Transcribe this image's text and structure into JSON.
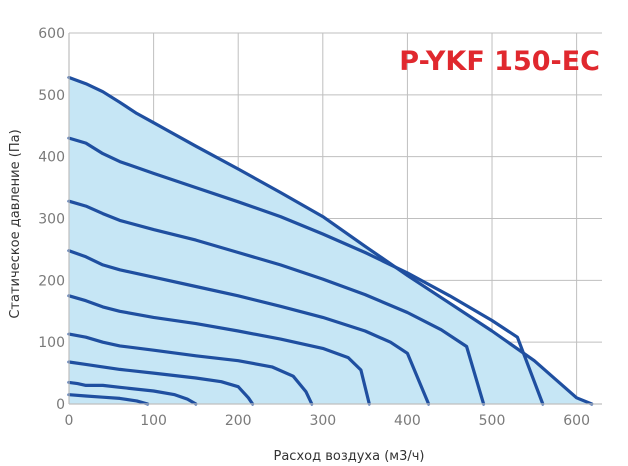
{
  "chart_data": {
    "type": "line",
    "title": "P-YKF 150-EC",
    "xlabel": "Расход воздуха (м3/ч)",
    "ylabel": "Статическое давление (Па)",
    "xlim": [
      0,
      630
    ],
    "ylim": [
      0,
      600
    ],
    "x_ticks": [
      0,
      100,
      200,
      300,
      400,
      500,
      600
    ],
    "y_ticks": [
      0,
      100,
      200,
      300,
      400,
      500,
      600
    ],
    "grid": true,
    "colors": {
      "line": "#1f4fa0",
      "fill": "#c6e6f5",
      "grid": "#bfbfbf",
      "title": "#e0282e"
    },
    "series": [
      {
        "points": [
          [
            0,
            528
          ],
          [
            20,
            518
          ],
          [
            40,
            505
          ],
          [
            60,
            488
          ],
          [
            80,
            470
          ],
          [
            100,
            455
          ],
          [
            150,
            417
          ],
          [
            200,
            380
          ],
          [
            250,
            342
          ],
          [
            300,
            303
          ],
          [
            350,
            255
          ],
          [
            400,
            208
          ],
          [
            450,
            163
          ],
          [
            500,
            118
          ],
          [
            550,
            70
          ],
          [
            575,
            40
          ],
          [
            600,
            10
          ],
          [
            618,
            0
          ]
        ]
      },
      {
        "points": [
          [
            0,
            430
          ],
          [
            20,
            422
          ],
          [
            40,
            405
          ],
          [
            60,
            392
          ],
          [
            100,
            373
          ],
          [
            150,
            350
          ],
          [
            200,
            327
          ],
          [
            250,
            303
          ],
          [
            300,
            275
          ],
          [
            350,
            245
          ],
          [
            400,
            212
          ],
          [
            450,
            175
          ],
          [
            500,
            135
          ],
          [
            530,
            108
          ],
          [
            560,
            0
          ]
        ]
      },
      {
        "points": [
          [
            0,
            328
          ],
          [
            20,
            320
          ],
          [
            40,
            308
          ],
          [
            60,
            297
          ],
          [
            100,
            282
          ],
          [
            150,
            265
          ],
          [
            200,
            245
          ],
          [
            250,
            225
          ],
          [
            300,
            202
          ],
          [
            350,
            177
          ],
          [
            400,
            148
          ],
          [
            440,
            120
          ],
          [
            470,
            93
          ],
          [
            490,
            0
          ]
        ]
      },
      {
        "points": [
          [
            0,
            248
          ],
          [
            20,
            238
          ],
          [
            40,
            225
          ],
          [
            60,
            217
          ],
          [
            100,
            205
          ],
          [
            150,
            190
          ],
          [
            200,
            175
          ],
          [
            250,
            158
          ],
          [
            300,
            140
          ],
          [
            350,
            118
          ],
          [
            380,
            100
          ],
          [
            400,
            82
          ],
          [
            425,
            0
          ]
        ]
      },
      {
        "points": [
          [
            0,
            175
          ],
          [
            20,
            167
          ],
          [
            40,
            157
          ],
          [
            60,
            150
          ],
          [
            100,
            140
          ],
          [
            150,
            130
          ],
          [
            200,
            118
          ],
          [
            250,
            105
          ],
          [
            300,
            90
          ],
          [
            330,
            75
          ],
          [
            345,
            55
          ],
          [
            355,
            0
          ]
        ]
      },
      {
        "points": [
          [
            0,
            113
          ],
          [
            20,
            108
          ],
          [
            40,
            100
          ],
          [
            60,
            94
          ],
          [
            100,
            87
          ],
          [
            150,
            78
          ],
          [
            200,
            70
          ],
          [
            240,
            60
          ],
          [
            265,
            45
          ],
          [
            280,
            20
          ],
          [
            287,
            0
          ]
        ]
      },
      {
        "points": [
          [
            0,
            68
          ],
          [
            20,
            64
          ],
          [
            40,
            60
          ],
          [
            60,
            56
          ],
          [
            100,
            50
          ],
          [
            150,
            42
          ],
          [
            180,
            36
          ],
          [
            200,
            28
          ],
          [
            212,
            10
          ],
          [
            217,
            0
          ]
        ]
      },
      {
        "points": [
          [
            0,
            35
          ],
          [
            10,
            33
          ],
          [
            20,
            30
          ],
          [
            40,
            30
          ],
          [
            60,
            27
          ],
          [
            100,
            21
          ],
          [
            125,
            15
          ],
          [
            140,
            8
          ],
          [
            150,
            0
          ]
        ]
      },
      {
        "points": [
          [
            0,
            15
          ],
          [
            20,
            13
          ],
          [
            40,
            11
          ],
          [
            60,
            9
          ],
          [
            80,
            5
          ],
          [
            93,
            0
          ]
        ]
      }
    ]
  }
}
